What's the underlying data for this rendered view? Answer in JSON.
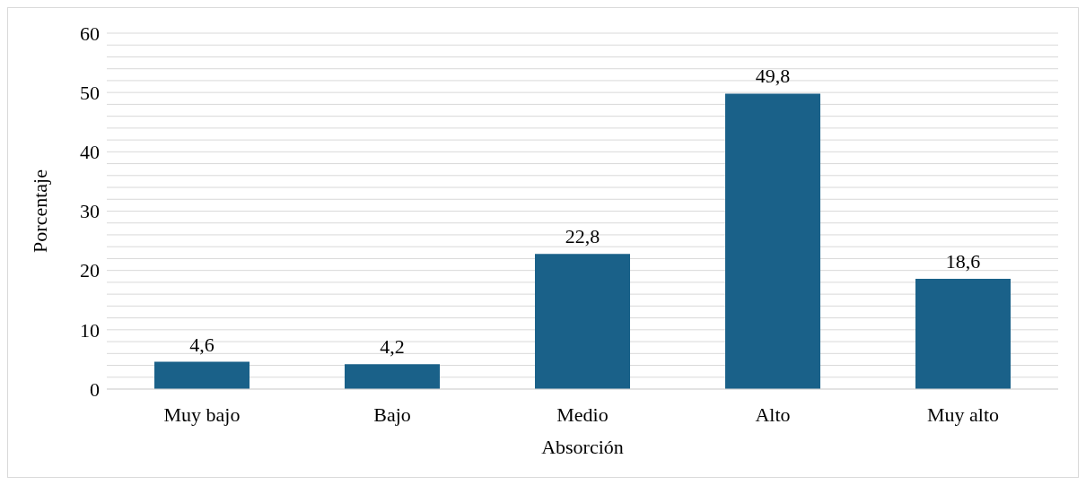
{
  "chart_data": {
    "type": "bar",
    "xlabel": "Absorción",
    "ylabel": "Porcentaje",
    "categories": [
      "Muy bajo",
      "Bajo",
      "Medio",
      "Alto",
      "Muy alto"
    ],
    "values": [
      4.6,
      4.2,
      22.8,
      49.8,
      18.6
    ],
    "value_labels": [
      "4,6",
      "4,2",
      "22,8",
      "49,8",
      "18,6"
    ],
    "color": "#1a6189",
    "ylim": [
      0,
      60
    ],
    "yticks": [
      0,
      {
        "value": 2,
        "label": null
      },
      {
        "value": 4,
        "label": null
      },
      {
        "value": 6,
        "label": null
      },
      {
        "value": 8,
        "label": null
      },
      10,
      {
        "value": 12,
        "label": null
      },
      {
        "value": 14,
        "label": null
      },
      {
        "value": 16,
        "label": null
      },
      {
        "value": 18,
        "label": null
      },
      20,
      {
        "value": 22,
        "label": null
      },
      {
        "value": 24,
        "label": null
      },
      {
        "value": 26,
        "label": null
      },
      {
        "value": 28,
        "label": null
      },
      30,
      {
        "value": 32,
        "label": null
      },
      {
        "value": 34,
        "label": null
      },
      {
        "value": 36,
        "label": null
      },
      {
        "value": 38,
        "label": null
      },
      40,
      {
        "value": 42,
        "label": null
      },
      {
        "value": 44,
        "label": null
      },
      {
        "value": 46,
        "label": null
      },
      {
        "value": 48,
        "label": null
      },
      50,
      {
        "value": 52,
        "label": null
      },
      {
        "value": 54,
        "label": null
      },
      {
        "value": 56,
        "label": null
      },
      {
        "value": 58,
        "label": null
      },
      60
    ],
    "grid": true
  }
}
